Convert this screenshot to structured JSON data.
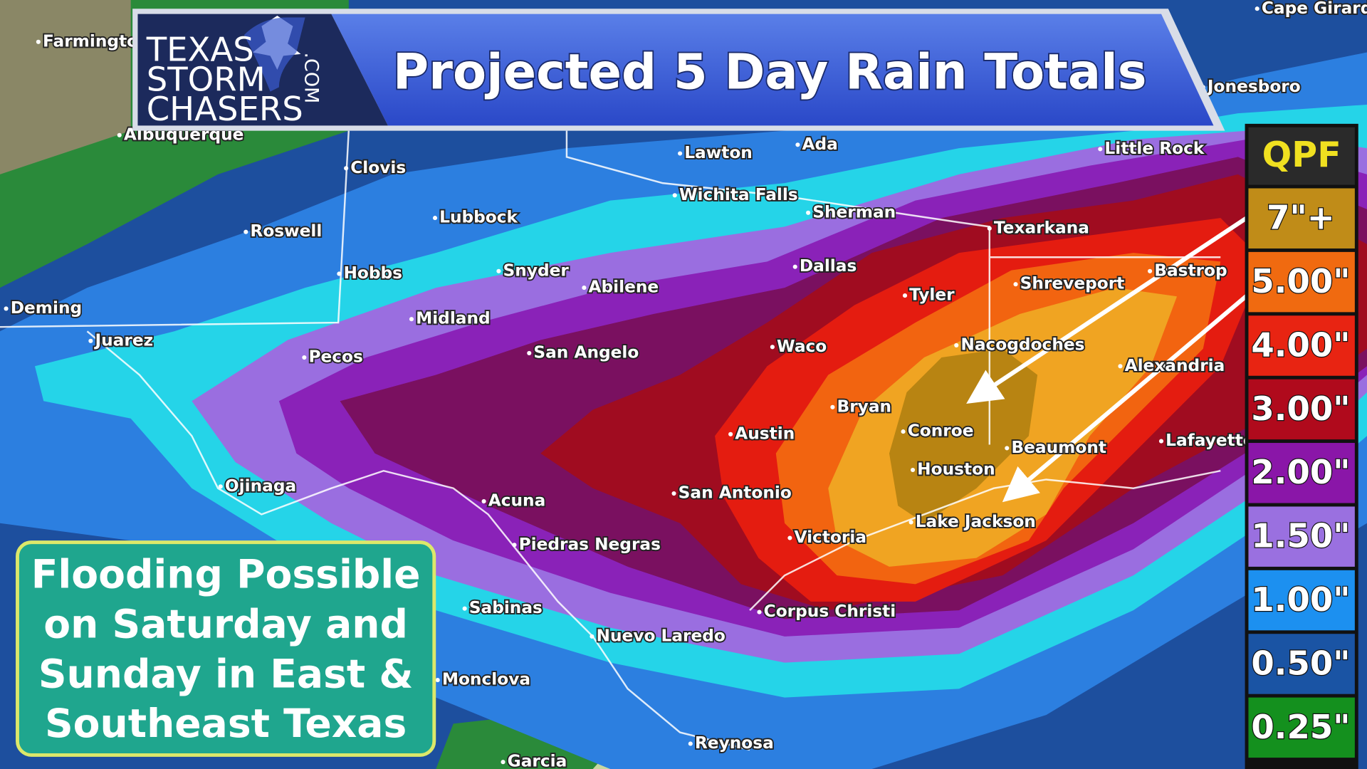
{
  "header": {
    "title": "Projected 5 Day Rain Totals",
    "logo_lines": [
      "TEXAS",
      "STORM",
      "CHASERS"
    ],
    "logo_suffix": ".COM"
  },
  "legend": {
    "title": "QPF",
    "items": [
      {
        "label": "7\"+",
        "color": "#c08c18"
      },
      {
        "label": "5.00\"",
        "color": "#f06a10"
      },
      {
        "label": "4.00\"",
        "color": "#e82412"
      },
      {
        "label": "3.00\"",
        "color": "#b00a1c"
      },
      {
        "label": "2.00\"",
        "color": "#8a16a8"
      },
      {
        "label": "1.50\"",
        "color": "#9a70e0"
      },
      {
        "label": "1.00\"",
        "color": "#1c90f0"
      },
      {
        "label": "0.50\"",
        "color": "#1a54a4"
      },
      {
        "label": "0.25\"",
        "color": "#14901e"
      }
    ]
  },
  "callout": {
    "lines": [
      "Flooding Possible",
      "on Saturday and",
      "Sunday in East &",
      "Southeast Texas"
    ]
  },
  "cities": [
    {
      "name": "Farmington"
    },
    {
      "name": "Albuquerque"
    },
    {
      "name": "Clovis"
    },
    {
      "name": "Roswell"
    },
    {
      "name": "Lubbock"
    },
    {
      "name": "Lawton"
    },
    {
      "name": "Wichita Falls"
    },
    {
      "name": "Ada"
    },
    {
      "name": "Sherman"
    },
    {
      "name": "Texarkana"
    },
    {
      "name": "Little Rock"
    },
    {
      "name": "Jonesboro"
    },
    {
      "name": "Cape Girardeau"
    },
    {
      "name": "Hobbs"
    },
    {
      "name": "Snyder"
    },
    {
      "name": "Abilene"
    },
    {
      "name": "Dallas"
    },
    {
      "name": "Tyler"
    },
    {
      "name": "Shreveport"
    },
    {
      "name": "Bastrop"
    },
    {
      "name": "Deming"
    },
    {
      "name": "Juarez"
    },
    {
      "name": "Midland"
    },
    {
      "name": "Pecos"
    },
    {
      "name": "San Angelo"
    },
    {
      "name": "Waco"
    },
    {
      "name": "Nacogdoches"
    },
    {
      "name": "Alexandria"
    },
    {
      "name": "Bryan"
    },
    {
      "name": "Austin"
    },
    {
      "name": "Conroe"
    },
    {
      "name": "Beaumont"
    },
    {
      "name": "Lafayette"
    },
    {
      "name": "Houston"
    },
    {
      "name": "San Antonio"
    },
    {
      "name": "Ojinaga"
    },
    {
      "name": "Acuna"
    },
    {
      "name": "Lake Jackson"
    },
    {
      "name": "Victoria"
    },
    {
      "name": "Piedras Negras"
    },
    {
      "name": "Sabinas"
    },
    {
      "name": "Corpus Christi"
    },
    {
      "name": "Nuevo Laredo"
    },
    {
      "name": "Monclova"
    },
    {
      "name": "Reynosa"
    },
    {
      "name": "Garcia"
    }
  ]
}
